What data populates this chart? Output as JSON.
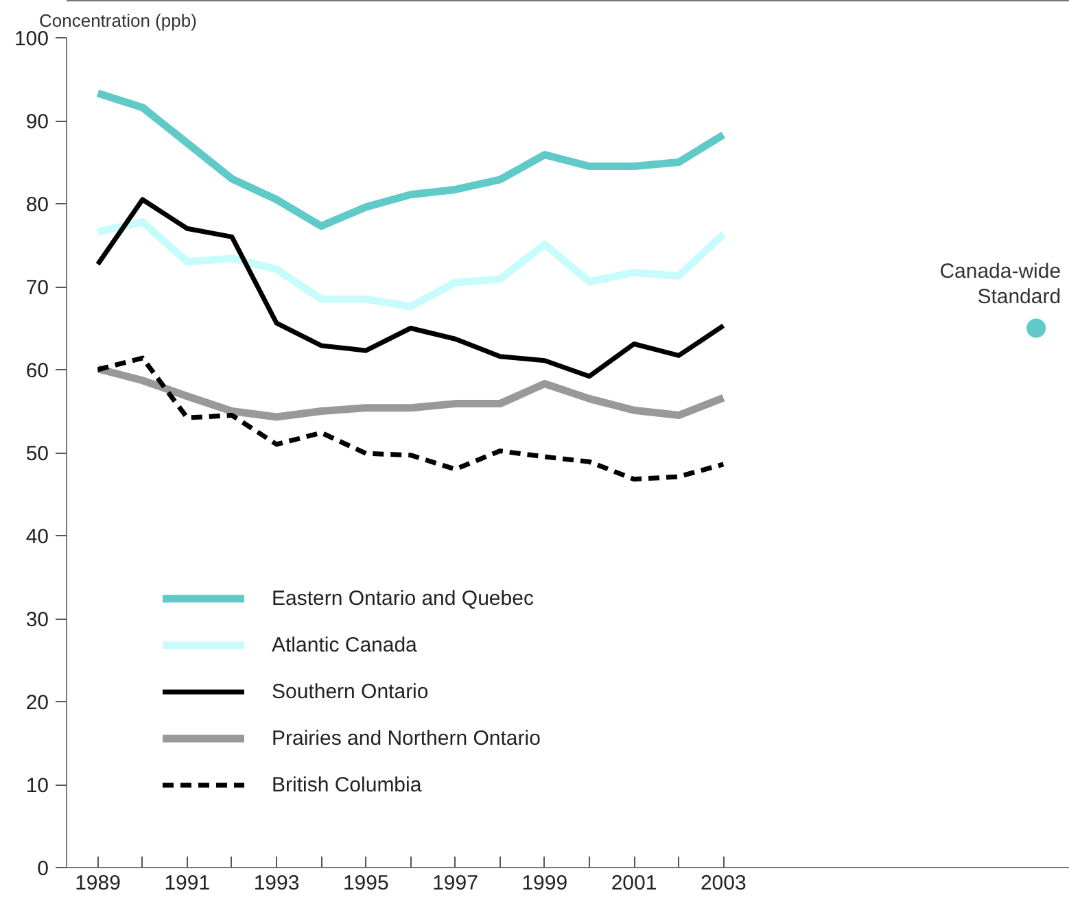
{
  "chart_data": {
    "type": "line",
    "ylabel": "Concentration (ppb)",
    "x": [
      1989,
      1990,
      1991,
      1992,
      1993,
      1994,
      1995,
      1996,
      1997,
      1998,
      1999,
      2000,
      2001,
      2002,
      2003
    ],
    "series": [
      {
        "name": "Eastern Ontario and Quebec",
        "color": "#5fcac8",
        "values": [
          93.3,
          91.6,
          87.3,
          83.0,
          80.5,
          77.3,
          79.6,
          81.1,
          81.7,
          82.9,
          85.9,
          84.5,
          84.5,
          85.0,
          88.3
        ]
      },
      {
        "name": "Atlantic Canada",
        "color": "#c8fcfc",
        "values": [
          76.6,
          77.8,
          73.0,
          73.4,
          72.1,
          68.5,
          68.5,
          67.6,
          70.5,
          70.9,
          75.1,
          70.6,
          71.7,
          71.3,
          76.3
        ]
      },
      {
        "name": "Southern Ontario",
        "color": "#000000",
        "values": [
          72.7,
          80.5,
          77.0,
          76.0,
          65.6,
          62.9,
          62.3,
          65.0,
          63.7,
          61.6,
          61.1,
          59.2,
          63.1,
          61.7,
          65.3
        ]
      },
      {
        "name": "Prairies and Northern Ontario",
        "color": "#999999",
        "values": [
          60.1,
          58.7,
          56.8,
          55.0,
          54.3,
          55.0,
          55.4,
          55.4,
          55.9,
          55.9,
          58.3,
          56.5,
          55.1,
          54.5,
          56.6
        ]
      },
      {
        "name": "British Columbia",
        "color": "#000000",
        "line_style": "dashed",
        "values": [
          60.0,
          61.4,
          54.2,
          54.5,
          51.0,
          52.4,
          49.9,
          49.7,
          48.0,
          50.2,
          49.5,
          48.9,
          46.8,
          47.1,
          48.6
        ]
      },
      {
        "name": "Canada-wide Standard",
        "type": "scatter",
        "marker": "circle",
        "color": "#5fcac8",
        "x": [
          2010
        ],
        "values": [
          65
        ]
      }
    ],
    "xlim": [
      1988.3,
      2010.75
    ],
    "ylim": [
      0,
      100
    ],
    "xticks": [
      1989,
      {
        "value": 1990,
        "label": null
      },
      1991,
      {
        "value": 1992,
        "label": null
      },
      1993,
      {
        "value": 1994,
        "label": null
      },
      1995,
      {
        "value": 1996,
        "label": null
      },
      1997,
      {
        "value": 1998,
        "label": null
      },
      1999,
      {
        "value": 2000,
        "label": null
      },
      2001,
      {
        "value": 2002,
        "label": null
      },
      2003
    ],
    "yticks": [
      0,
      10,
      20,
      30,
      40,
      50,
      60,
      70,
      80,
      90,
      100
    ],
    "grid": false,
    "legend": "bottom left",
    "marker": "none",
    "line_style": "solid"
  }
}
